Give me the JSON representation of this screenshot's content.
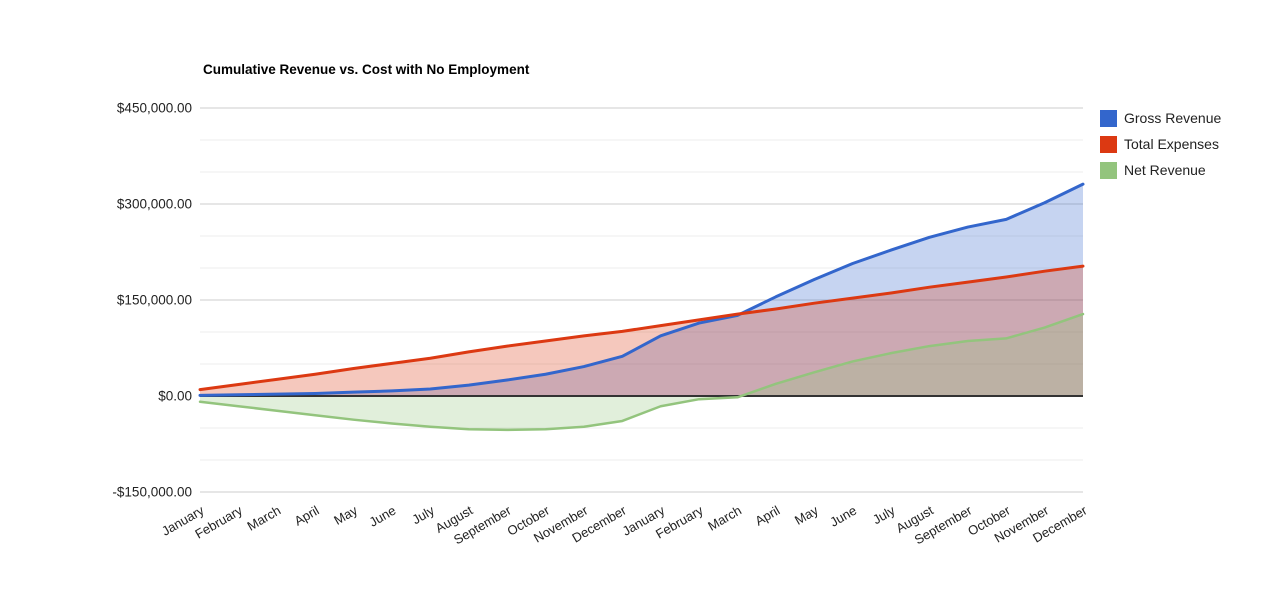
{
  "chart_data": {
    "type": "area",
    "title": "Cumulative Revenue vs. Cost with No Employment",
    "categories": [
      "January",
      "February",
      "March",
      "April",
      "May",
      "June",
      "July",
      "August",
      "September",
      "October",
      "November",
      "December",
      "January",
      "February",
      "March",
      "April",
      "May",
      "June",
      "July",
      "August",
      "September",
      "October",
      "November",
      "December"
    ],
    "series": [
      {
        "name": "Gross Revenue",
        "color": "#3366cc",
        "values": [
          1000,
          2000,
          3000,
          4000,
          6000,
          8000,
          11000,
          17000,
          25000,
          34000,
          46000,
          62000,
          94000,
          114000,
          126000,
          155000,
          182000,
          207000,
          228000,
          248000,
          264000,
          276000,
          302000,
          331000
        ]
      },
      {
        "name": "Total Expenses",
        "color": "#dc3912",
        "values": [
          10000,
          18000,
          26000,
          34000,
          43000,
          51000,
          59000,
          69000,
          78000,
          86000,
          94000,
          101000,
          110000,
          119000,
          128000,
          136000,
          145000,
          153000,
          161000,
          170000,
          178000,
          186000,
          195000,
          203000
        ]
      },
      {
        "name": "Net Revenue",
        "color": "#93c47d",
        "values": [
          -9000,
          -16000,
          -23000,
          -30000,
          -37000,
          -43000,
          -48000,
          -52000,
          -53000,
          -52000,
          -48000,
          -39000,
          -16000,
          -5000,
          -2000,
          19000,
          37000,
          54000,
          67000,
          78000,
          86000,
          90000,
          107000,
          128000
        ]
      }
    ],
    "y_axis": {
      "min": -150000,
      "max": 450000,
      "major_step": 150000,
      "minor_step": 50000,
      "tick_labels": [
        {
          "value": 450000,
          "label": "$450,000.00"
        },
        {
          "value": 300000,
          "label": "$300,000.00"
        },
        {
          "value": 150000,
          "label": "$150,000.00"
        },
        {
          "value": 0,
          "label": "$0.00"
        },
        {
          "value": -150000,
          "label": "-$150,000.00"
        }
      ]
    },
    "x_axis": {
      "label_rotation_deg": -30
    },
    "legend_position": "top-right",
    "grid": {
      "on": true,
      "major_color": "#cccccc",
      "minor_color": "#ededed",
      "baseline_color": "#333333"
    },
    "fill_opacity": 0.28
  }
}
